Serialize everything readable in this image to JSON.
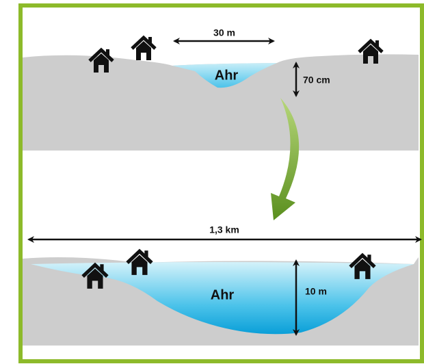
{
  "top": {
    "width_label": "30 m",
    "river_label": "Ahr",
    "depth_label": "70 cm"
  },
  "bottom": {
    "width_label": "1,3 km",
    "river_label": "Ahr",
    "depth_label": "10 m"
  }
}
